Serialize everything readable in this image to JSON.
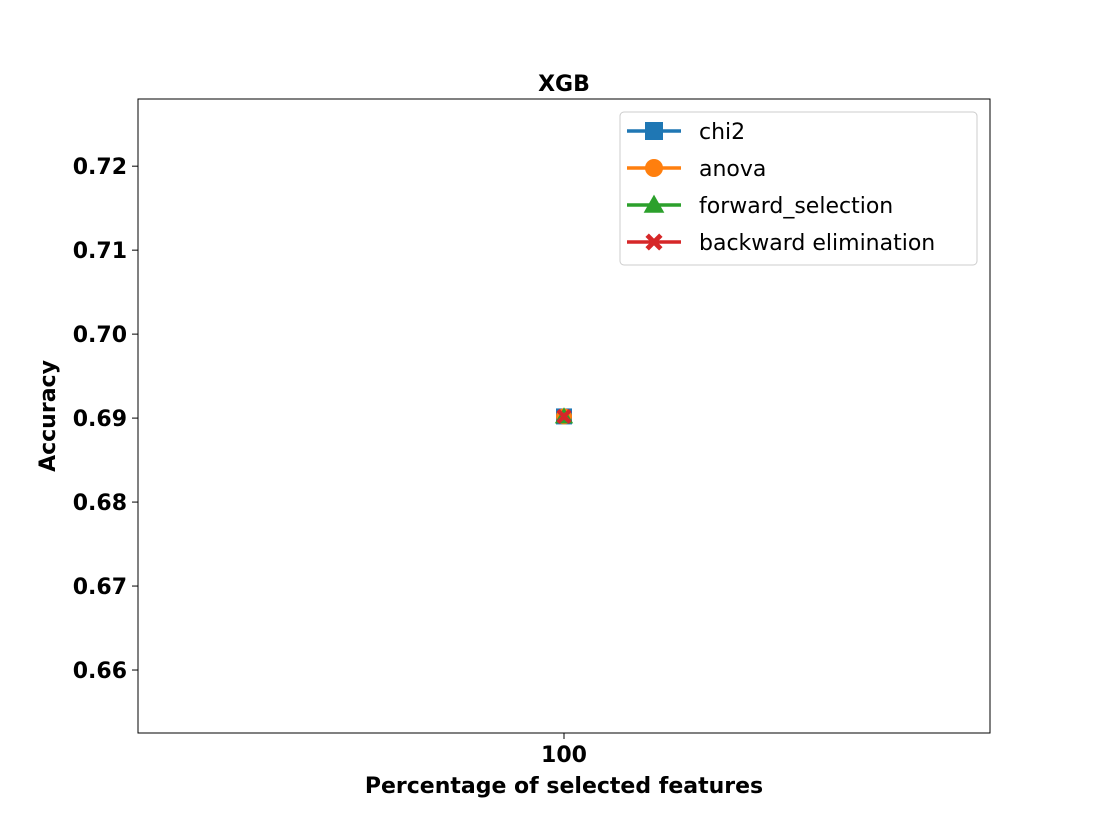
{
  "chart_data": {
    "type": "line",
    "title": "XGB",
    "xlabel": "Percentage of selected features",
    "ylabel": "Accuracy",
    "x": [
      100
    ],
    "x_tick_labels": [
      "100"
    ],
    "ylim": [
      0.6525,
      0.728
    ],
    "y_ticks": [
      0.66,
      0.67,
      0.68,
      0.69,
      0.7,
      0.71,
      0.72
    ],
    "y_tick_labels": [
      "0.66",
      "0.67",
      "0.68",
      "0.69",
      "0.70",
      "0.71",
      "0.72"
    ],
    "grid": false,
    "legend_position": "top-right",
    "series": [
      {
        "name": "chi2",
        "values": [
          0.6902
        ],
        "color": "#1f77b4",
        "marker": "square"
      },
      {
        "name": "anova",
        "values": [
          0.6902
        ],
        "color": "#ff7f0e",
        "marker": "circle"
      },
      {
        "name": "forward_selection",
        "values": [
          0.6902
        ],
        "color": "#2ca02c",
        "marker": "triangle"
      },
      {
        "name": "backward elimination",
        "values": [
          0.6902
        ],
        "color": "#d62728",
        "marker": "x-filled"
      }
    ]
  }
}
